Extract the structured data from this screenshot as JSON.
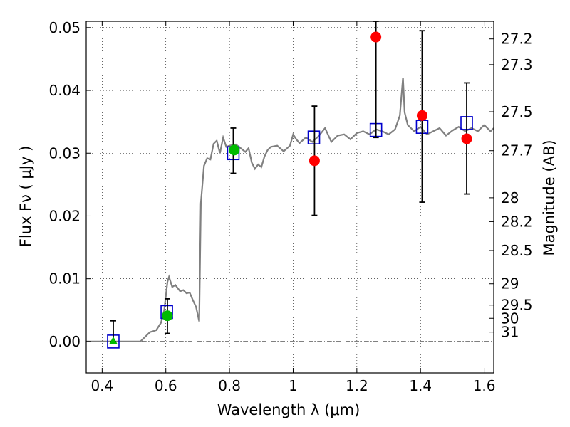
{
  "chart_data": {
    "type": "scatter",
    "title": "",
    "xlabel": "Wavelength  λ (μm)",
    "ylabel": "Flux  Fν  ( μJy )",
    "ylabel_right": "Magnitude (AB)",
    "xlim": [
      0.35,
      1.63
    ],
    "ylim": [
      -0.005,
      0.051
    ],
    "grid": true,
    "x_ticks": [
      0.4,
      0.6,
      0.8,
      1.0,
      1.2,
      1.4,
      1.6
    ],
    "x_tick_labels": [
      "0.4",
      "0.6",
      "0.8",
      "1",
      "1.2",
      "1.4",
      "1.6"
    ],
    "y_ticks": [
      0.0,
      0.01,
      0.02,
      0.03,
      0.04,
      0.05
    ],
    "y_tick_labels": [
      "0.00",
      "0.01",
      "0.02",
      "0.03",
      "0.04",
      "0.05"
    ],
    "right_axis": {
      "labels": [
        "27.2",
        "27.3",
        "27.5",
        "27.7",
        "28",
        "28.2",
        "28.5",
        "29",
        "29.5",
        "30",
        "31"
      ],
      "flux_positions": [
        0.0482,
        0.0441,
        0.0366,
        0.0304,
        0.0229,
        0.0191,
        0.0145,
        0.0092,
        0.0058,
        0.0037,
        0.0015
      ]
    },
    "series": [
      {
        "kind": "line",
        "color": "#808080",
        "points": [
          [
            0.35,
            0.0
          ],
          [
            0.52,
            0.0
          ],
          [
            0.55,
            0.0015
          ],
          [
            0.57,
            0.0018
          ],
          [
            0.585,
            0.003
          ],
          [
            0.595,
            0.005
          ],
          [
            0.605,
            0.0095
          ],
          [
            0.61,
            0.0103
          ],
          [
            0.62,
            0.0087
          ],
          [
            0.63,
            0.009
          ],
          [
            0.645,
            0.008
          ],
          [
            0.655,
            0.0082
          ],
          [
            0.665,
            0.0077
          ],
          [
            0.675,
            0.0078
          ],
          [
            0.685,
            0.0066
          ],
          [
            0.695,
            0.0055
          ],
          [
            0.705,
            0.0032
          ],
          [
            0.71,
            0.022
          ],
          [
            0.72,
            0.028
          ],
          [
            0.73,
            0.0292
          ],
          [
            0.74,
            0.029
          ],
          [
            0.75,
            0.0315
          ],
          [
            0.76,
            0.032
          ],
          [
            0.77,
            0.03
          ],
          [
            0.78,
            0.0325
          ],
          [
            0.79,
            0.031
          ],
          [
            0.8,
            0.0312
          ],
          [
            0.82,
            0.0314
          ],
          [
            0.83,
            0.031
          ],
          [
            0.85,
            0.0302
          ],
          [
            0.86,
            0.0308
          ],
          [
            0.87,
            0.0285
          ],
          [
            0.88,
            0.0275
          ],
          [
            0.89,
            0.0282
          ],
          [
            0.9,
            0.0278
          ],
          [
            0.91,
            0.0295
          ],
          [
            0.92,
            0.0305
          ],
          [
            0.93,
            0.031
          ],
          [
            0.95,
            0.0312
          ],
          [
            0.97,
            0.0303
          ],
          [
            0.99,
            0.0312
          ],
          [
            1.0,
            0.033
          ],
          [
            1.01,
            0.0322
          ],
          [
            1.02,
            0.0316
          ],
          [
            1.04,
            0.0325
          ],
          [
            1.06,
            0.0318
          ],
          [
            1.08,
            0.0327
          ],
          [
            1.1,
            0.034
          ],
          [
            1.12,
            0.0318
          ],
          [
            1.14,
            0.0328
          ],
          [
            1.16,
            0.033
          ],
          [
            1.18,
            0.0322
          ],
          [
            1.2,
            0.0332
          ],
          [
            1.22,
            0.0335
          ],
          [
            1.24,
            0.033
          ],
          [
            1.26,
            0.0338
          ],
          [
            1.28,
            0.0335
          ],
          [
            1.3,
            0.033
          ],
          [
            1.32,
            0.0338
          ],
          [
            1.335,
            0.036
          ],
          [
            1.345,
            0.042
          ],
          [
            1.35,
            0.0365
          ],
          [
            1.36,
            0.0345
          ],
          [
            1.38,
            0.0335
          ],
          [
            1.4,
            0.0342
          ],
          [
            1.42,
            0.033
          ],
          [
            1.44,
            0.0335
          ],
          [
            1.46,
            0.034
          ],
          [
            1.48,
            0.0328
          ],
          [
            1.5,
            0.0336
          ],
          [
            1.52,
            0.0342
          ],
          [
            1.54,
            0.0335
          ],
          [
            1.56,
            0.034
          ],
          [
            1.58,
            0.0335
          ],
          [
            1.6,
            0.0345
          ],
          [
            1.62,
            0.0335
          ],
          [
            1.63,
            0.034
          ]
        ]
      },
      {
        "kind": "squares",
        "color": "#0000cc",
        "x": [
          0.435,
          0.603,
          0.812,
          1.065,
          1.26,
          1.405,
          1.545
        ],
        "y": [
          0.0,
          0.0047,
          0.03,
          0.0325,
          0.0337,
          0.0342,
          0.0348
        ]
      },
      {
        "kind": "errorbars",
        "color": "#000000",
        "points": [
          {
            "x": 0.435,
            "low": 0.0,
            "high": 0.0033
          },
          {
            "x": 0.605,
            "low": 0.0013,
            "high": 0.0068
          },
          {
            "x": 0.812,
            "low": 0.0268,
            "high": 0.034
          },
          {
            "x": 1.067,
            "low": 0.0201,
            "high": 0.0375
          },
          {
            "x": 1.26,
            "low": 0.0325,
            "high": 0.051
          },
          {
            "x": 1.405,
            "low": 0.0222,
            "high": 0.0495
          },
          {
            "x": 1.545,
            "low": 0.0235,
            "high": 0.0412
          }
        ]
      },
      {
        "kind": "circles",
        "color": "#00bb00",
        "x": [
          0.605,
          0.815
        ],
        "y": [
          0.0041,
          0.0305
        ]
      },
      {
        "kind": "triangle",
        "color": "#00bb00",
        "x": [
          0.435
        ],
        "y": [
          0.0
        ]
      },
      {
        "kind": "circles",
        "color": "#ff0000",
        "x": [
          1.067,
          1.26,
          1.405,
          1.545
        ],
        "y": [
          0.0288,
          0.0485,
          0.036,
          0.0323
        ]
      }
    ]
  }
}
